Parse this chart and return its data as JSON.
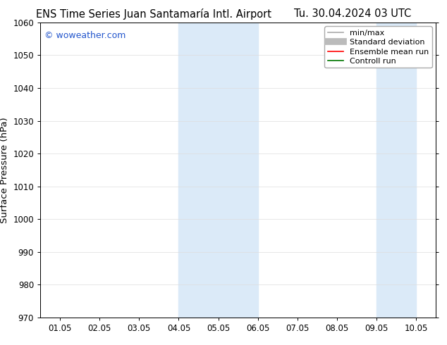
{
  "title_left": "ENS Time Series Juan Santamaría Intl. Airport",
  "title_right": "Tu. 30.04.2024 03 UTC",
  "ylabel": "Surface Pressure (hPa)",
  "ylim": [
    970,
    1060
  ],
  "yticks": [
    970,
    980,
    990,
    1000,
    1010,
    1020,
    1030,
    1040,
    1050,
    1060
  ],
  "xtick_labels": [
    "01.05",
    "02.05",
    "03.05",
    "04.05",
    "05.05",
    "06.05",
    "07.05",
    "08.05",
    "09.05",
    "10.05"
  ],
  "shade_bands": [
    {
      "xmin": 3.0,
      "xmax": 4.0
    },
    {
      "xmin": 4.0,
      "xmax": 5.0
    },
    {
      "xmin": 8.0,
      "xmax": 9.0
    }
  ],
  "shade_color": "#dbeaf8",
  "watermark": "© woweather.com",
  "watermark_color": "#2255cc",
  "legend_entries": [
    {
      "label": "min/max",
      "color": "#aaaaaa",
      "lw": 1.2,
      "style": "-"
    },
    {
      "label": "Standard deviation",
      "color": "#bbbbbb",
      "lw": 7,
      "style": "-"
    },
    {
      "label": "Ensemble mean run",
      "color": "#ff0000",
      "lw": 1.2,
      "style": "-"
    },
    {
      "label": "Controll run",
      "color": "#007700",
      "lw": 1.2,
      "style": "-"
    }
  ],
  "background_color": "#ffffff",
  "grid_color": "#dddddd",
  "title_fontsize": 10.5,
  "tick_fontsize": 8.5,
  "ylabel_fontsize": 9.5,
  "legend_fontsize": 8
}
